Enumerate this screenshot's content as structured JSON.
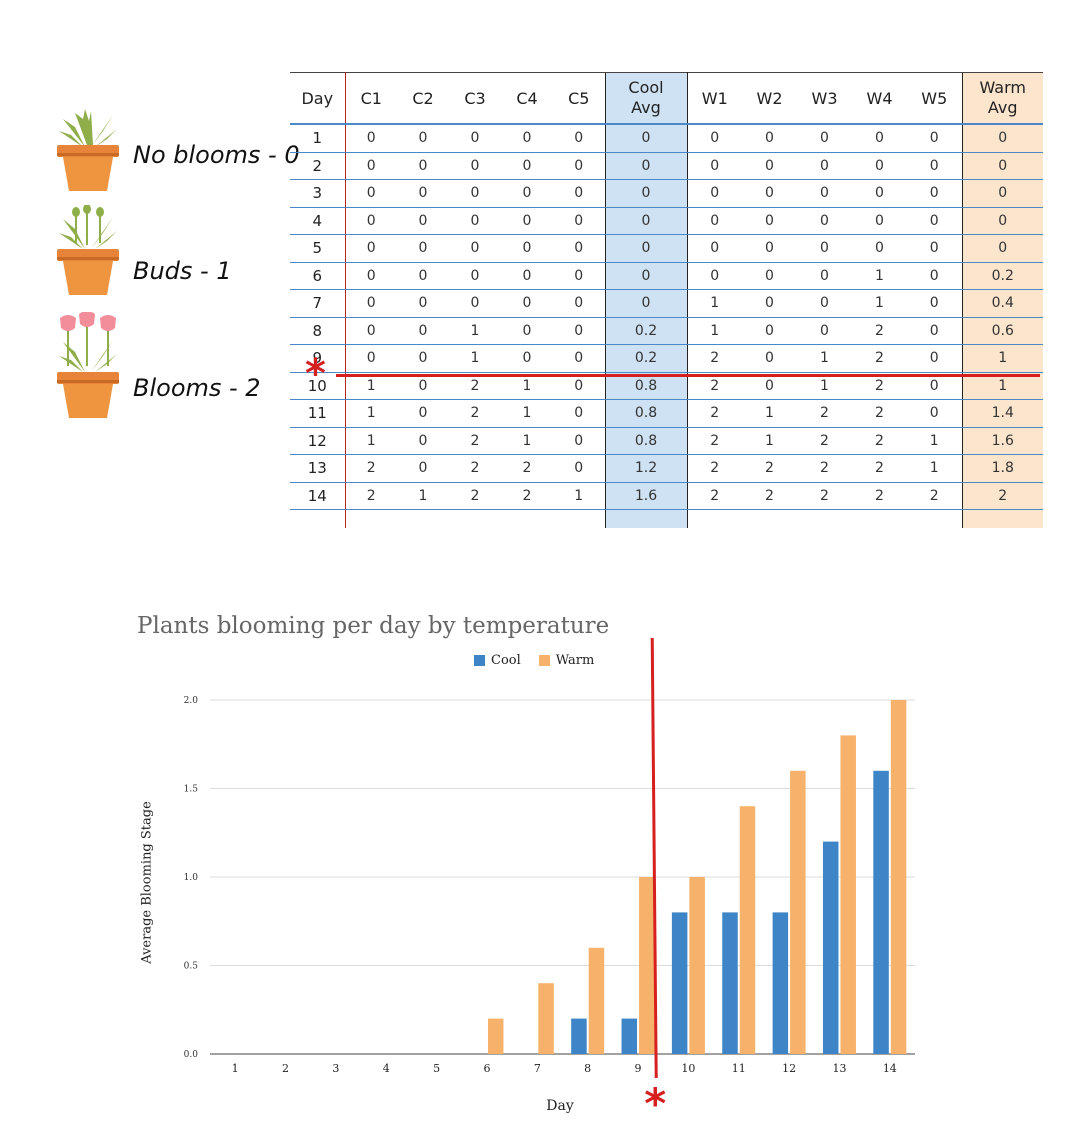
{
  "legend_stages": [
    {
      "label": "No blooms - 0",
      "stage": "no-blooms"
    },
    {
      "label": "Buds - 1",
      "stage": "buds"
    },
    {
      "label": "Blooms - 2",
      "stage": "blooms"
    }
  ],
  "table": {
    "headers": [
      "Day",
      "C1",
      "C2",
      "C3",
      "C4",
      "C5",
      "Cool\nAvg",
      "W1",
      "W2",
      "W3",
      "W4",
      "W5",
      "Warm\nAvg"
    ],
    "rows": [
      [
        "1",
        "0",
        "0",
        "0",
        "0",
        "0",
        "0",
        "0",
        "0",
        "0",
        "0",
        "0",
        "0"
      ],
      [
        "2",
        "0",
        "0",
        "0",
        "0",
        "0",
        "0",
        "0",
        "0",
        "0",
        "0",
        "0",
        "0"
      ],
      [
        "3",
        "0",
        "0",
        "0",
        "0",
        "0",
        "0",
        "0",
        "0",
        "0",
        "0",
        "0",
        "0"
      ],
      [
        "4",
        "0",
        "0",
        "0",
        "0",
        "0",
        "0",
        "0",
        "0",
        "0",
        "0",
        "0",
        "0"
      ],
      [
        "5",
        "0",
        "0",
        "0",
        "0",
        "0",
        "0",
        "0",
        "0",
        "0",
        "0",
        "0",
        "0"
      ],
      [
        "6",
        "0",
        "0",
        "0",
        "0",
        "0",
        "0",
        "0",
        "0",
        "0",
        "1",
        "0",
        "0.2"
      ],
      [
        "7",
        "0",
        "0",
        "0",
        "0",
        "0",
        "0",
        "1",
        "0",
        "0",
        "1",
        "0",
        "0.4"
      ],
      [
        "8",
        "0",
        "0",
        "1",
        "0",
        "0",
        "0.2",
        "1",
        "0",
        "0",
        "2",
        "0",
        "0.6"
      ],
      [
        "9",
        "0",
        "0",
        "1",
        "0",
        "0",
        "0.2",
        "2",
        "0",
        "1",
        "2",
        "0",
        "1"
      ],
      [
        "10",
        "1",
        "0",
        "2",
        "1",
        "0",
        "0.8",
        "2",
        "0",
        "1",
        "2",
        "0",
        "1"
      ],
      [
        "11",
        "1",
        "0",
        "2",
        "1",
        "0",
        "0.8",
        "2",
        "1",
        "2",
        "2",
        "0",
        "1.4"
      ],
      [
        "12",
        "1",
        "0",
        "2",
        "1",
        "0",
        "0.8",
        "2",
        "1",
        "2",
        "2",
        "1",
        "1.6"
      ],
      [
        "13",
        "2",
        "0",
        "2",
        "2",
        "0",
        "1.2",
        "2",
        "2",
        "2",
        "2",
        "1",
        "1.8"
      ],
      [
        "14",
        "2",
        "1",
        "2",
        "2",
        "1",
        "1.6",
        "2",
        "2",
        "2",
        "2",
        "2",
        "2"
      ]
    ],
    "marker_symbol": "*"
  },
  "colors": {
    "cool": "#3d85c6",
    "warm": "#f6b26b",
    "marker": "#d62020",
    "cool_bg": "#cfe2f3",
    "warm_bg": "#fce5cd"
  },
  "chart_data": {
    "type": "bar",
    "title": "Plants blooming per day by temperature",
    "xlabel": "Day",
    "ylabel": "Average Blooming Stage",
    "categories": [
      "1",
      "2",
      "3",
      "4",
      "5",
      "6",
      "7",
      "8",
      "9",
      "10",
      "11",
      "12",
      "13",
      "14"
    ],
    "series": [
      {
        "name": "Cool",
        "values": [
          0,
          0,
          0,
          0,
          0,
          0,
          0,
          0.2,
          0.2,
          0.8,
          0.8,
          0.8,
          1.2,
          1.6
        ]
      },
      {
        "name": "Warm",
        "values": [
          0,
          0,
          0,
          0,
          0,
          0.2,
          0.4,
          0.6,
          1,
          1,
          1.4,
          1.6,
          1.8,
          2
        ]
      }
    ],
    "ylim": [
      0,
      2
    ],
    "yticks": [
      "0.0",
      "0.5",
      "1.0",
      "1.5",
      "2.0"
    ],
    "grid": true,
    "legend_position": "top-center",
    "marker_symbol": "*"
  }
}
